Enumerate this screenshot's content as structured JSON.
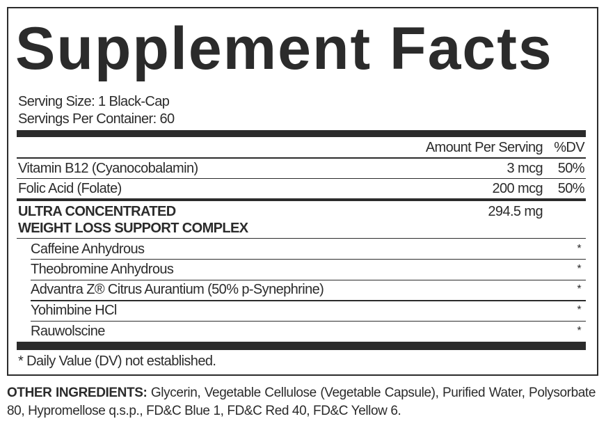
{
  "title": "Supplement Facts",
  "serving_size": "Serving Size: 1 Black-Cap",
  "servings_per_container": "Servings Per Container: 60",
  "header": {
    "amount": "Amount Per Serving",
    "dv": "%DV"
  },
  "nutrients": [
    {
      "name": "Vitamin B12 (Cyanocobalamin)",
      "amount": "3 mcg",
      "dv": "50%"
    },
    {
      "name": "Folic Acid (Folate)",
      "amount": "200 mcg",
      "dv": "50%"
    }
  ],
  "complex": {
    "line1": "ULTRA CONCENTRATED",
    "line2": "WEIGHT LOSS SUPPORT COMPLEX",
    "amount": "294.5 mg"
  },
  "complex_items": [
    {
      "name": "Caffeine Anhydrous",
      "dv": "*"
    },
    {
      "name": "Theobromine Anhydrous",
      "dv": "*"
    },
    {
      "name": "Advantra Z® Citrus Aurantium (50% p-Synephrine)",
      "dv": "*"
    },
    {
      "name": "Yohimbine HCl",
      "dv": "*"
    },
    {
      "name": "Rauwolscine",
      "dv": "*"
    }
  ],
  "footnote": "*  Daily Value (DV) not established.",
  "other_ingredients": {
    "label": "OTHER INGREDIENTS:",
    "text": " Glycerin, Vegetable Cellulose (Vegetable Capsule), Purified Water, Polysorbate 80, Hypromellose q.s.p., FD&C Blue 1, FD&C Red 40, FD&C Yellow 6."
  }
}
